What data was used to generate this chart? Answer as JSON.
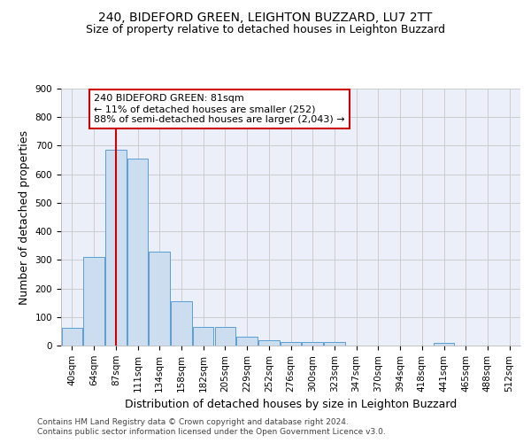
{
  "title_line1": "240, BIDEFORD GREEN, LEIGHTON BUZZARD, LU7 2TT",
  "title_line2": "Size of property relative to detached houses in Leighton Buzzard",
  "xlabel": "Distribution of detached houses by size in Leighton Buzzard",
  "ylabel": "Number of detached properties",
  "footer_line1": "Contains HM Land Registry data © Crown copyright and database right 2024.",
  "footer_line2": "Contains public sector information licensed under the Open Government Licence v3.0.",
  "categories": [
    "40sqm",
    "64sqm",
    "87sqm",
    "111sqm",
    "134sqm",
    "158sqm",
    "182sqm",
    "205sqm",
    "229sqm",
    "252sqm",
    "276sqm",
    "300sqm",
    "323sqm",
    "347sqm",
    "370sqm",
    "394sqm",
    "418sqm",
    "441sqm",
    "465sqm",
    "488sqm",
    "512sqm"
  ],
  "values": [
    62,
    310,
    685,
    655,
    330,
    155,
    65,
    65,
    30,
    18,
    12,
    12,
    12,
    0,
    0,
    0,
    0,
    10,
    0,
    0,
    0
  ],
  "bar_color": "#ccddf0",
  "bar_edge_color": "#5a9fd4",
  "vline_x_index": 2,
  "vline_color": "#cc0000",
  "annotation_text": "240 BIDEFORD GREEN: 81sqm\n← 11% of detached houses are smaller (252)\n88% of semi-detached houses are larger (2,043) →",
  "annotation_box_facecolor": "#ffffff",
  "annotation_box_edgecolor": "#cc0000",
  "ylim": [
    0,
    900
  ],
  "yticks": [
    0,
    100,
    200,
    300,
    400,
    500,
    600,
    700,
    800,
    900
  ],
  "grid_color": "#cccccc",
  "bg_color": "#eaeff9",
  "title1_fontsize": 10,
  "title2_fontsize": 9,
  "axis_label_fontsize": 9,
  "tick_fontsize": 7.5,
  "annotation_fontsize": 8,
  "footer_fontsize": 6.5
}
